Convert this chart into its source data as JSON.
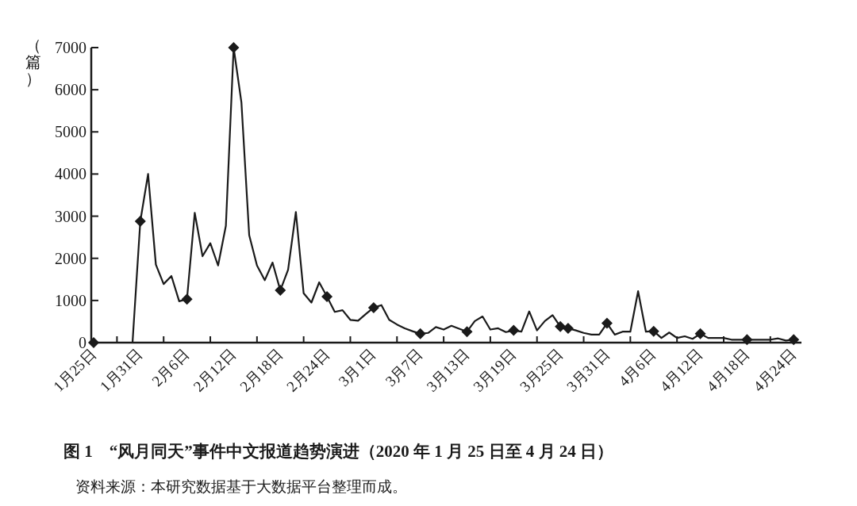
{
  "chart_data": {
    "type": "line",
    "title": "图 1　“风月同天”事件中文报道趋势演进（2020 年 1 月 25 日至 4 月 24 日）",
    "ylabel": "（篇）",
    "annotations": [
      "资料来源：本研究数据基于大数据平台整理而成。"
    ],
    "xlim": [
      "2020-01-25",
      "2020-04-25"
    ],
    "xticks": [
      {
        "value": "2020-01-25",
        "label": "1月25日"
      },
      {
        "value": "2020-01-28",
        "label": null
      },
      {
        "value": "2020-01-31",
        "label": "1月31日"
      },
      {
        "value": "2020-02-03",
        "label": null
      },
      {
        "value": "2020-02-06",
        "label": "2月6日"
      },
      {
        "value": "2020-02-09",
        "label": null
      },
      {
        "value": "2020-02-12",
        "label": "2月12日"
      },
      {
        "value": "2020-02-15",
        "label": null
      },
      {
        "value": "2020-02-18",
        "label": "2月18日"
      },
      {
        "value": "2020-02-21",
        "label": null
      },
      {
        "value": "2020-02-24",
        "label": "2月24日"
      },
      {
        "value": "2020-02-27",
        "label": null
      },
      {
        "value": "2020-03-01",
        "label": "3月1日"
      },
      {
        "value": "2020-03-04",
        "label": null
      },
      {
        "value": "2020-03-07",
        "label": "3月7日"
      },
      {
        "value": "2020-03-10",
        "label": null
      },
      {
        "value": "2020-03-13",
        "label": "3月13日"
      },
      {
        "value": "2020-03-16",
        "label": null
      },
      {
        "value": "2020-03-19",
        "label": "3月19日"
      },
      {
        "value": "2020-03-22",
        "label": null
      },
      {
        "value": "2020-03-25",
        "label": "3月25日"
      },
      {
        "value": "2020-03-28",
        "label": null
      },
      {
        "value": "2020-03-31",
        "label": "3月31日"
      },
      {
        "value": "2020-04-03",
        "label": null
      },
      {
        "value": "2020-04-06",
        "label": "4月6日"
      },
      {
        "value": "2020-04-09",
        "label": null
      },
      {
        "value": "2020-04-12",
        "label": "4月12日"
      },
      {
        "value": "2020-04-15",
        "label": null
      },
      {
        "value": "2020-04-18",
        "label": "4月18日"
      },
      {
        "value": "2020-04-21",
        "label": null
      },
      {
        "value": "2020-04-24",
        "label": "4月24日"
      }
    ],
    "ylim": [
      0,
      7000
    ],
    "yticks": [
      0,
      1000,
      2000,
      3000,
      4000,
      5000,
      6000,
      7000
    ],
    "x": [
      "2020-01-25",
      "2020-01-26",
      "2020-01-27",
      "2020-01-28",
      "2020-01-29",
      "2020-01-30",
      "2020-01-31",
      "2020-02-01",
      "2020-02-02",
      "2020-02-03",
      "2020-02-04",
      "2020-02-05",
      "2020-02-06",
      "2020-02-07",
      "2020-02-08",
      "2020-02-09",
      "2020-02-10",
      "2020-02-11",
      "2020-02-12",
      "2020-02-13",
      "2020-02-14",
      "2020-02-15",
      "2020-02-16",
      "2020-02-17",
      "2020-02-18",
      "2020-02-19",
      "2020-02-20",
      "2020-02-21",
      "2020-02-22",
      "2020-02-23",
      "2020-02-24",
      "2020-02-25",
      "2020-02-26",
      "2020-02-27",
      "2020-02-28",
      "2020-02-29",
      "2020-03-01",
      "2020-03-02",
      "2020-03-03",
      "2020-03-04",
      "2020-03-05",
      "2020-03-06",
      "2020-03-07",
      "2020-03-08",
      "2020-03-09",
      "2020-03-10",
      "2020-03-11",
      "2020-03-12",
      "2020-03-13",
      "2020-03-14",
      "2020-03-15",
      "2020-03-16",
      "2020-03-17",
      "2020-03-18",
      "2020-03-19",
      "2020-03-20",
      "2020-03-21",
      "2020-03-22",
      "2020-03-23",
      "2020-03-24",
      "2020-03-25",
      "2020-03-26",
      "2020-03-27",
      "2020-03-28",
      "2020-03-29",
      "2020-03-30",
      "2020-03-31",
      "2020-04-01",
      "2020-04-02",
      "2020-04-03",
      "2020-04-04",
      "2020-04-05",
      "2020-04-06",
      "2020-04-07",
      "2020-04-08",
      "2020-04-09",
      "2020-04-10",
      "2020-04-11",
      "2020-04-12",
      "2020-04-13",
      "2020-04-14",
      "2020-04-15",
      "2020-04-16",
      "2020-04-17",
      "2020-04-18",
      "2020-04-19",
      "2020-04-20",
      "2020-04-21",
      "2020-04-22",
      "2020-04-23",
      "2020-04-24"
    ],
    "series": [
      {
        "type": "line",
        "color": "#1a1a1a",
        "marker": "none",
        "values": [
          0,
          0,
          0,
          0,
          0,
          0,
          2880,
          4000,
          1850,
          1390,
          1580,
          980,
          1030,
          3080,
          2050,
          2360,
          1830,
          2770,
          7000,
          5700,
          2550,
          1830,
          1480,
          1900,
          1240,
          1730,
          3100,
          1170,
          950,
          1430,
          1090,
          730,
          770,
          540,
          520,
          680,
          830,
          890,
          540,
          430,
          340,
          270,
          210,
          230,
          370,
          310,
          400,
          330,
          260,
          510,
          620,
          310,
          340,
          250,
          290,
          260,
          740,
          290,
          510,
          650,
          380,
          340,
          290,
          230,
          190,
          190,
          460,
          190,
          260,
          260,
          1220,
          260,
          270,
          110,
          240,
          110,
          150,
          90,
          210,
          110,
          110,
          110,
          70,
          70,
          70,
          70,
          70,
          70,
          100,
          50,
          70
        ]
      },
      {
        "type": "scatter",
        "color": "#1a1a1a",
        "marker": "diamond",
        "x": [
          "2020-01-25",
          "2020-01-31",
          "2020-02-06",
          "2020-02-12",
          "2020-02-18",
          "2020-02-24",
          "2020-03-01",
          "2020-03-07",
          "2020-03-13",
          "2020-03-19",
          "2020-03-25",
          "2020-03-26",
          "2020-03-31",
          "2020-04-06",
          "2020-04-12",
          "2020-04-18",
          "2020-04-24"
        ],
        "values": [
          0,
          2880,
          1030,
          7000,
          1240,
          1090,
          830,
          210,
          260,
          290,
          380,
          340,
          460,
          270,
          210,
          70,
          70
        ]
      }
    ]
  }
}
